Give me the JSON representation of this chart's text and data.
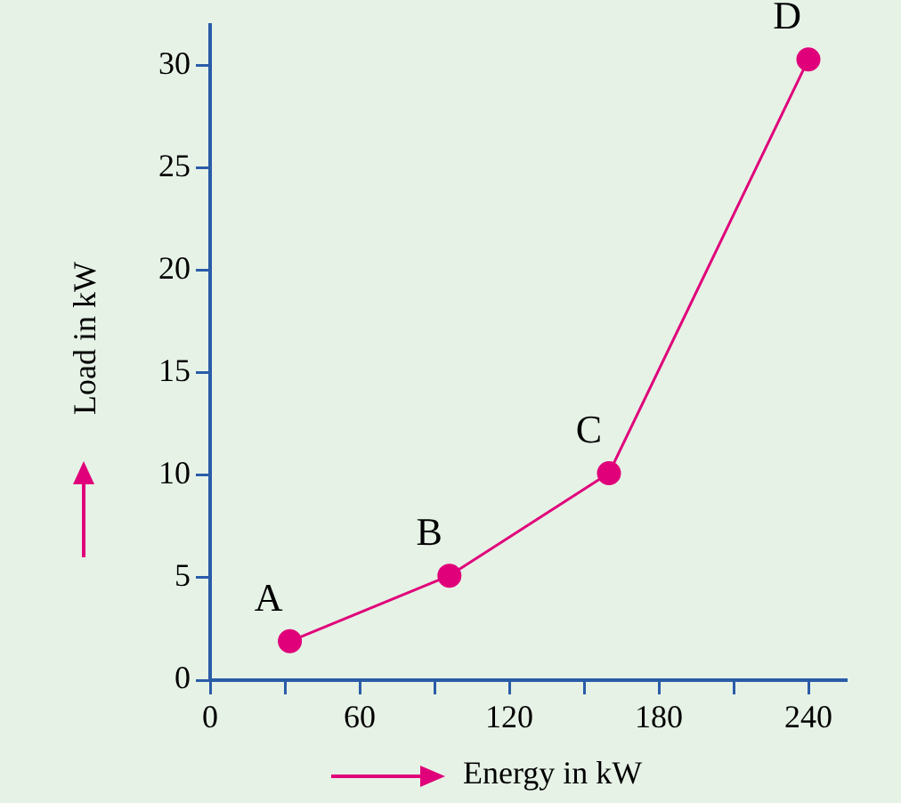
{
  "chart_data": {
    "type": "line",
    "xlabel": "Energy in kW",
    "ylabel": "Load in kW",
    "x": [
      32,
      96,
      160,
      240
    ],
    "series": [
      {
        "color": "#e0007a",
        "values": [
          1.9,
          5.1,
          10.1,
          30.3
        ]
      }
    ],
    "xlim": [
      0,
      255
    ],
    "ylim": [
      0,
      32
    ],
    "xticks": [
      0,
      {
        "value": 30,
        "label": null
      },
      60,
      {
        "value": 90,
        "label": null
      },
      120,
      {
        "value": 150,
        "label": null
      },
      180,
      {
        "value": 210,
        "label": null
      },
      240
    ],
    "yticks": [
      0,
      5,
      10,
      15,
      20,
      25,
      30
    ],
    "annotations": [
      {
        "text": "A",
        "x": 32,
        "y": 1.9
      },
      {
        "text": "B",
        "x": 96,
        "y": 5.1
      },
      {
        "text": "C",
        "x": 160,
        "y": 10.1
      },
      {
        "text": "D",
        "x": 240,
        "y": 30.3
      }
    ],
    "grid": false,
    "legend": false,
    "marker": "circle",
    "line_style": "solid"
  }
}
